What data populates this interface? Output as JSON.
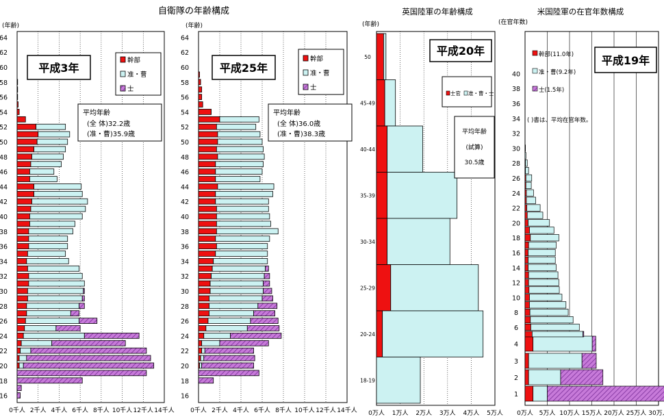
{
  "titles": {
    "japan": "自衛隊の年齢構成",
    "uk": "英国陸軍の年齢構成",
    "us": "米国陸軍の在官年数構成"
  },
  "colors": {
    "officer": "#ee1111",
    "nco": "#ccf2f2",
    "enlisted": "#c77ad9",
    "frame": "#000000",
    "grid": "#000000"
  },
  "chart_data": [
    {
      "type": "bar",
      "orientation": "horizontal",
      "stacked": true,
      "title": "自衛隊の年齢構成",
      "ylabel": "(年齢)",
      "panel_label": "平成3年",
      "legend": [
        "幹部",
        "准・曹",
        "士"
      ],
      "legend_placement": "top-right",
      "annotation": [
        "平均年齢",
        "(全 体)32.2歳",
        "(准・曹)35.9歳"
      ],
      "xticks": [
        "0千人",
        "2千人",
        "4千人",
        "6千人",
        "8千人",
        "10千人",
        "12千人",
        "14千人"
      ],
      "xlim": [
        0,
        14
      ],
      "yticks": [
        16,
        18,
        20,
        22,
        24,
        26,
        28,
        30,
        32,
        34,
        36,
        38,
        40,
        42,
        44,
        46,
        48,
        50,
        52,
        54,
        56,
        58,
        60,
        62,
        64
      ],
      "grid": true,
      "ages": [
        64,
        63,
        62,
        61,
        60,
        59,
        58,
        57,
        56,
        55,
        54,
        53,
        52,
        51,
        50,
        49,
        48,
        47,
        46,
        45,
        44,
        43,
        42,
        41,
        40,
        39,
        38,
        37,
        36,
        35,
        34,
        33,
        32,
        31,
        30,
        29,
        28,
        27,
        26,
        25,
        24,
        23,
        22,
        21,
        20,
        19,
        18,
        17,
        16
      ],
      "series": [
        {
          "name": "幹部",
          "values": [
            0,
            0,
            0,
            0,
            0,
            0,
            0.05,
            0.05,
            0.05,
            0.1,
            0.2,
            0.8,
            1.8,
            2.0,
            1.9,
            1.6,
            1.4,
            1.3,
            1.2,
            1.2,
            1.6,
            1.6,
            1.4,
            1.3,
            1.2,
            1.2,
            1.1,
            1.1,
            1.1,
            1.0,
            0.9,
            1.0,
            1.1,
            1.1,
            1.0,
            1.0,
            0.9,
            0.9,
            0.8,
            0.7,
            0.6,
            0.4,
            0.3,
            0.2,
            0.2,
            0,
            0,
            0,
            0
          ]
        },
        {
          "name": "准・曹",
          "values": [
            0,
            0,
            0,
            0,
            0,
            0,
            0,
            0,
            0,
            0,
            0,
            0,
            2.8,
            3.0,
            2.9,
            3.0,
            3.0,
            2.9,
            2.3,
            2.6,
            4.5,
            4.6,
            5.3,
            5.2,
            5.0,
            4.3,
            4.2,
            3.7,
            3.7,
            3.6,
            4.0,
            4.9,
            5.1,
            5.3,
            5.3,
            5.2,
            5.0,
            4.2,
            5.1,
            3.0,
            5.8,
            2.9,
            1.0,
            0.7,
            0.4,
            0,
            0,
            0,
            0
          ]
        },
        {
          "name": "士",
          "values": [
            0,
            0,
            0,
            0,
            0,
            0,
            0,
            0,
            0,
            0,
            0,
            0,
            0,
            0,
            0,
            0,
            0,
            0,
            0,
            0,
            0,
            0,
            0,
            0,
            0,
            0,
            0,
            0,
            0,
            0,
            0,
            0,
            0,
            0,
            0.1,
            0.2,
            0.5,
            0.8,
            1.7,
            2.3,
            5.2,
            7.0,
            11.0,
            11.8,
            12.4,
            12.3,
            6.2,
            0.4,
            0.3
          ]
        }
      ]
    },
    {
      "type": "bar",
      "orientation": "horizontal",
      "stacked": true,
      "panel_label": "平成25年",
      "legend": [
        "幹部",
        "准・曹",
        "士"
      ],
      "legend_placement": "top-right",
      "annotation": [
        "平均年齢",
        "(全 体)36.0歳",
        "(准・曹)38.3歳"
      ],
      "xticks": [
        "0千人",
        "2千人",
        "4千人",
        "6千人",
        "8千人",
        "10千人",
        "12千人",
        "14千人"
      ],
      "xlim": [
        0,
        14
      ],
      "yticks": [
        16,
        18,
        20,
        22,
        24,
        26,
        28,
        30,
        32,
        34,
        36,
        38,
        40,
        42,
        44,
        46,
        48,
        50,
        52,
        54,
        56,
        58,
        60,
        62,
        64
      ],
      "grid": true,
      "ages": [
        64,
        63,
        62,
        61,
        60,
        59,
        58,
        57,
        56,
        55,
        54,
        53,
        52,
        51,
        50,
        49,
        48,
        47,
        46,
        45,
        44,
        43,
        42,
        41,
        40,
        39,
        38,
        37,
        36,
        35,
        34,
        33,
        32,
        31,
        30,
        29,
        28,
        27,
        26,
        25,
        24,
        23,
        22,
        21,
        20,
        19,
        18,
        17,
        16
      ],
      "series": [
        {
          "name": "幹部",
          "values": [
            0,
            0,
            0,
            0,
            0,
            0.1,
            0.2,
            0.3,
            0.3,
            0.4,
            1.2,
            2.0,
            1.7,
            1.8,
            1.8,
            1.7,
            1.8,
            1.6,
            1.6,
            1.6,
            1.8,
            1.6,
            1.6,
            1.7,
            1.7,
            1.7,
            1.7,
            1.6,
            1.7,
            1.6,
            1.4,
            1.3,
            1.2,
            1.1,
            1.1,
            1.0,
            1.0,
            1.0,
            0.9,
            0.7,
            0.5,
            0.3,
            0.3,
            0.2,
            0.1,
            0,
            0,
            0,
            0
          ]
        },
        {
          "name": "准・曹",
          "values": [
            0,
            0,
            0,
            0,
            0,
            0,
            0,
            0,
            0,
            0,
            0,
            3.7,
            3.7,
            4.0,
            4.2,
            4.4,
            4.4,
            4.5,
            4.4,
            4.2,
            5.3,
            5.4,
            5.0,
            4.9,
            5.0,
            5.1,
            5.8,
            5.1,
            4.8,
            4.9,
            5.1,
            5.0,
            5.0,
            5.0,
            5.0,
            5.0,
            4.6,
            4.2,
            4.0,
            3.9,
            2.5,
            1.7,
            0.3,
            0.3,
            0.2,
            0,
            0,
            0,
            0
          ]
        },
        {
          "name": "士",
          "values": [
            0,
            0,
            0,
            0,
            0,
            0,
            0,
            0,
            0,
            0,
            0,
            0,
            0,
            0,
            0,
            0,
            0,
            0,
            0,
            0,
            0,
            0,
            0,
            0,
            0,
            0,
            0,
            0,
            0,
            0,
            0,
            0.3,
            0.5,
            0.6,
            0.8,
            1.0,
            1.8,
            2.0,
            2.6,
            3.0,
            4.8,
            4.6,
            4.6,
            4.8,
            4.9,
            5.7,
            1.4,
            0,
            0
          ]
        }
      ]
    },
    {
      "type": "bar",
      "orientation": "horizontal",
      "stacked": true,
      "title": "英国陸軍の年齢構成",
      "ylabel": "(年齢)",
      "panel_label": "平成20年",
      "legend": [
        "士官",
        "准・曹・士"
      ],
      "legend_placement": "top-right",
      "annotation": [
        "平均年齢",
        "(試算)",
        "30.5歳"
      ],
      "xticks": [
        "0万人",
        "1万人",
        "2万人",
        "3万人",
        "4万人",
        "5万人"
      ],
      "xlim": [
        0,
        5
      ],
      "grid": true,
      "categories": [
        "18-19",
        "20-24",
        "25-29",
        "30-34",
        "35-39",
        "40-44",
        "45-49",
        "50"
      ],
      "series": [
        {
          "name": "士官",
          "values": [
            0,
            0.25,
            0.6,
            0.45,
            0.45,
            0.45,
            0.35,
            0.3
          ]
        },
        {
          "name": "准・曹・士",
          "values": [
            1.85,
            4.25,
            3.7,
            2.65,
            2.95,
            1.5,
            0.45,
            0.1
          ]
        }
      ]
    },
    {
      "type": "bar",
      "orientation": "horizontal",
      "stacked": true,
      "title": "米国陸軍の在官年数構成",
      "ylabel": "(在官年数)",
      "panel_label": "平成19年",
      "legend": [
        "幹部(11.0年)",
        "准・曹(9.2年)",
        "士(1.5年)"
      ],
      "legend_placement": "top-left",
      "annotation": [
        "( )書は、平均在官年数。"
      ],
      "xticks": [
        "0万人",
        "5万人",
        "10万人",
        "15万人",
        "20万人",
        "25万人",
        "30万人"
      ],
      "xlim": [
        0,
        30
      ],
      "yticks": [
        1,
        2,
        3,
        4,
        6,
        8,
        10,
        12,
        14,
        16,
        18,
        20,
        22,
        24,
        26,
        28,
        30,
        32,
        34,
        36,
        38,
        40
      ],
      "grid": true,
      "years": [
        1,
        2,
        3,
        4,
        5,
        6,
        7,
        8,
        9,
        10,
        11,
        12,
        13,
        14,
        15,
        16,
        17,
        18,
        19,
        20,
        21,
        22,
        23,
        24,
        25,
        26,
        27,
        28,
        29,
        30,
        31,
        32,
        33,
        34,
        35,
        36,
        37,
        38,
        39,
        40
      ],
      "series": [
        {
          "name": "幹部",
          "values": [
            1.8,
            0.8,
            0.8,
            1.8,
            1.6,
            1.3,
            1.2,
            1.1,
            1.0,
            1.0,
            0.9,
            0.8,
            0.8,
            0.7,
            0.7,
            0.7,
            0.8,
            1.2,
            1.0,
            0.7,
            0.5,
            0.4,
            0.3,
            0.3,
            0.2,
            0.2,
            0.1,
            0.1,
            0,
            0,
            0,
            0,
            0,
            0,
            0,
            0,
            0,
            0,
            0,
            0
          ]
        },
        {
          "name": "准・曹",
          "values": [
            3.2,
            7.2,
            12.0,
            13.3,
            11.4,
            10.9,
            9.6,
            8.6,
            8.2,
            7.3,
            6.8,
            6.8,
            6.6,
            6.3,
            6.1,
            6.1,
            6.2,
            6.4,
            5.5,
            4.8,
            3.5,
            3.0,
            2.1,
            1.6,
            1.2,
            1.3,
            0.7,
            0.4,
            0.2,
            0.1,
            0,
            0,
            0,
            0,
            0,
            0,
            0,
            0,
            0,
            0
          ]
        },
        {
          "name": "士",
          "values": [
            26.5,
            9.5,
            3.2,
            0.8,
            0.2,
            0,
            0,
            0,
            0,
            0,
            0,
            0,
            0,
            0,
            0,
            0,
            0,
            0,
            0,
            0,
            0,
            0,
            0,
            0,
            0,
            0,
            0,
            0,
            0,
            0,
            0,
            0,
            0,
            0,
            0,
            0,
            0,
            0,
            0,
            0
          ]
        }
      ]
    }
  ]
}
